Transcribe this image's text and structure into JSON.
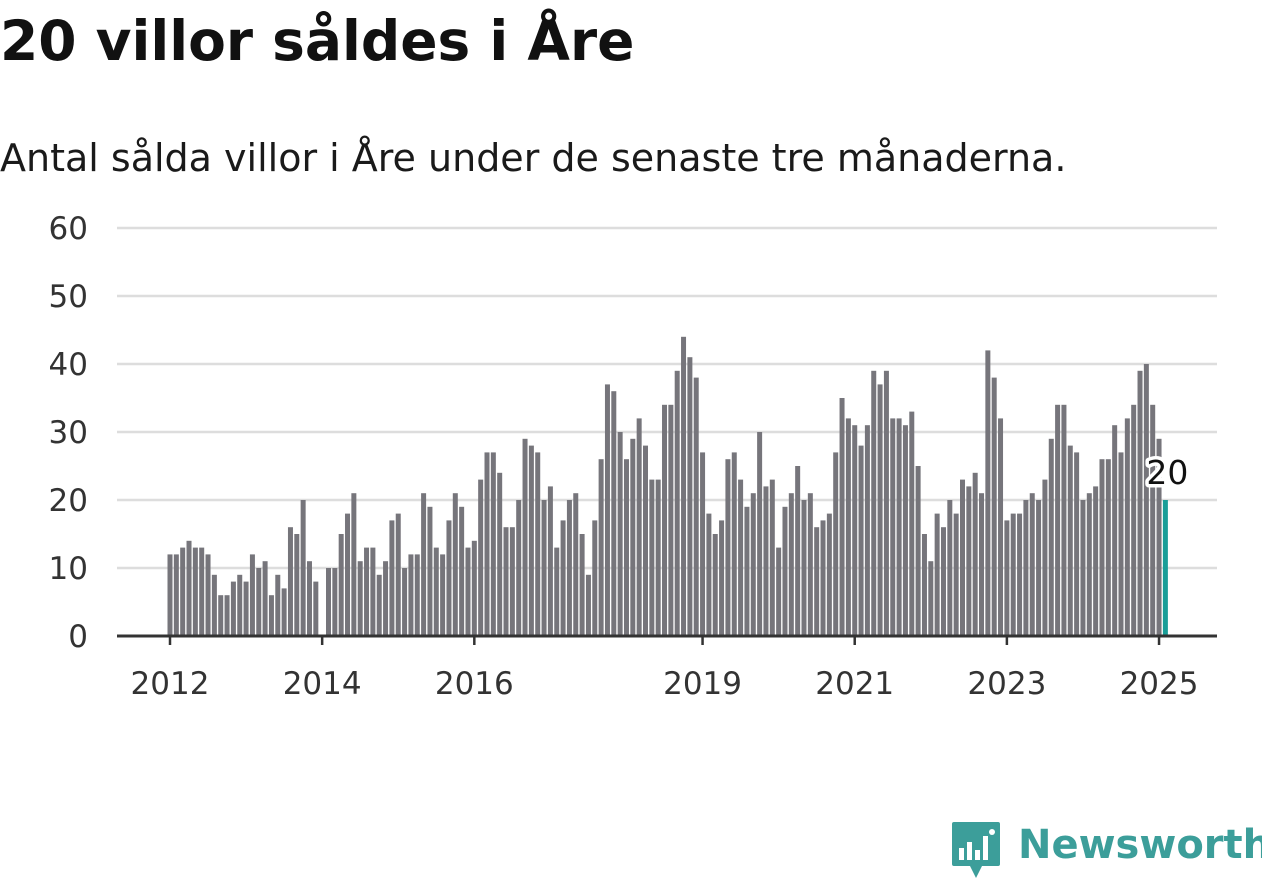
{
  "header": {
    "title": "20 villor såldes i Åre",
    "subtitle": "Antal sålda villor i Åre under de senaste tre månaderna."
  },
  "brand": {
    "name": "Newsworthy",
    "icon": "bar-chart-badge-icon",
    "color": "#3c9e9a"
  },
  "colors": {
    "bar": "#76757b",
    "highlight": "#1a9e98",
    "grid": "#dddddd",
    "axis": "#333333"
  },
  "chart_data": {
    "type": "bar",
    "title": "20 villor såldes i Åre",
    "subtitle": "Antal sålda villor i Åre under de senaste tre månaderna.",
    "xlabel": "",
    "ylabel": "",
    "ylim": [
      0,
      60
    ],
    "yticks": [
      0,
      10,
      20,
      30,
      40,
      50,
      60
    ],
    "grid": true,
    "legend": "none",
    "x_start": "2012-01",
    "frequency": "monthly",
    "xticks": [
      {
        "label": "2012",
        "date": "2012-01"
      },
      {
        "label": "2014",
        "date": "2014-01"
      },
      {
        "label": "2016",
        "date": "2016-01"
      },
      {
        "label": "2019",
        "date": "2019-01"
      },
      {
        "label": "2021",
        "date": "2021-01"
      },
      {
        "label": "2023",
        "date": "2023-01"
      },
      {
        "label": "2025",
        "date": "2025-01"
      }
    ],
    "values": [
      12,
      12,
      13,
      14,
      13,
      13,
      12,
      9,
      6,
      6,
      8,
      9,
      8,
      12,
      10,
      11,
      6,
      9,
      7,
      16,
      15,
      20,
      11,
      8,
      null,
      10,
      10,
      15,
      18,
      21,
      11,
      13,
      13,
      9,
      11,
      17,
      18,
      10,
      12,
      12,
      21,
      19,
      13,
      12,
      17,
      21,
      19,
      13,
      14,
      23,
      27,
      27,
      24,
      16,
      16,
      20,
      29,
      28,
      27,
      20,
      22,
      13,
      17,
      20,
      21,
      15,
      9,
      17,
      26,
      37,
      36,
      30,
      26,
      29,
      32,
      28,
      23,
      23,
      34,
      34,
      39,
      44,
      41,
      38,
      27,
      18,
      15,
      17,
      26,
      27,
      23,
      19,
      21,
      30,
      22,
      23,
      13,
      19,
      21,
      25,
      20,
      21,
      16,
      17,
      18,
      27,
      35,
      32,
      31,
      28,
      31,
      39,
      37,
      39,
      32,
      32,
      31,
      33,
      25,
      15,
      11,
      18,
      16,
      20,
      18,
      23,
      22,
      24,
      21,
      42,
      38,
      32,
      17,
      18,
      18,
      20,
      21,
      20,
      23,
      29,
      34,
      34,
      28,
      27,
      20,
      21,
      22,
      26,
      26,
      31,
      27,
      32,
      34,
      39,
      40,
      34,
      29,
      20
    ],
    "highlight": {
      "index": 157,
      "value": 20,
      "label": "20"
    }
  }
}
